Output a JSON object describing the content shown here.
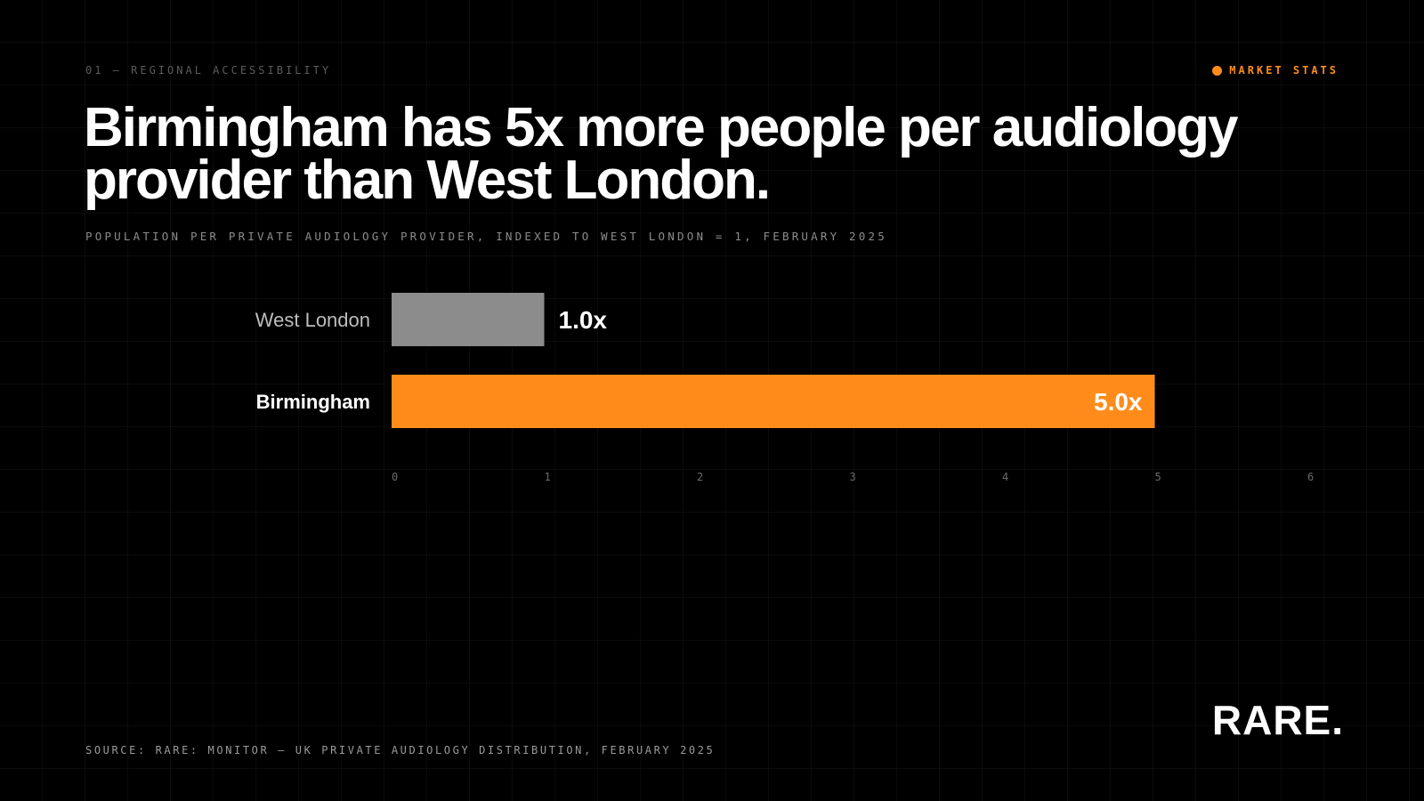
{
  "header": {
    "eyebrow": "01 — REGIONAL ACCESSIBILITY",
    "tag": "MARKET STATS",
    "accent_color": "#ff8c1a"
  },
  "title": "Birmingham has 5x more people per audiology provider than West London.",
  "subtitle": "POPULATION PER PRIVATE AUDIOLOGY PROVIDER, INDEXED TO WEST LONDON = 1, FEBRUARY 2025",
  "chart_data": {
    "type": "bar",
    "orientation": "horizontal",
    "title": "Birmingham has 5x more people per audiology provider than West London.",
    "subtitle": "POPULATION PER PRIVATE AUDIOLOGY PROVIDER, INDEXED TO WEST LONDON = 1, FEBRUARY 2025",
    "categories": [
      "West London",
      "Birmingham"
    ],
    "values": [
      1.0,
      5.0
    ],
    "value_labels": [
      "1.0x",
      "5.0x"
    ],
    "colors": [
      "#8c8c8c",
      "#ff8c1a"
    ],
    "xlim": [
      0,
      6
    ],
    "xticks": [
      "0",
      "1",
      "2",
      "3",
      "4",
      "5",
      "6"
    ],
    "xlabel": "",
    "ylabel": "",
    "grid": true,
    "legend": "none"
  },
  "footer": {
    "source": "SOURCE: RARE: MONITOR — UK PRIVATE AUDIOLOGY DISTRIBUTION, FEBRUARY 2025",
    "logo": "RARE."
  }
}
